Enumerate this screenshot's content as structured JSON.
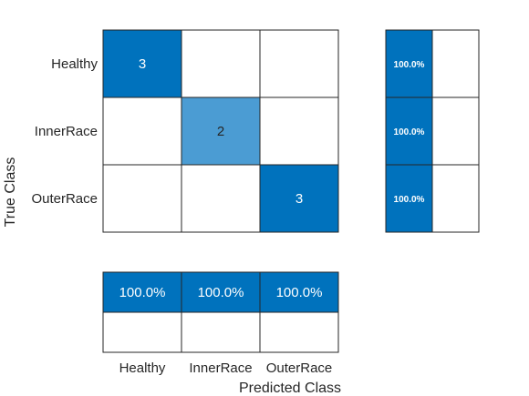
{
  "chart_data": {
    "type": "heatmap",
    "title": "",
    "xlabel": "Predicted Class",
    "ylabel": "True Class",
    "classes": [
      "Healthy",
      "InnerRace",
      "OuterRace"
    ],
    "matrix": [
      [
        3,
        null,
        null
      ],
      [
        null,
        2,
        null
      ],
      [
        null,
        null,
        3
      ]
    ],
    "row_summary": [
      "100.0%",
      "100.0%",
      "100.0%"
    ],
    "column_summary": [
      "100.0%",
      "100.0%",
      "100.0%"
    ],
    "colors": {
      "strong": "#0072bd",
      "medium": "#4b9cd3",
      "empty": "#ffffff",
      "grid": "#262626",
      "label": "#262626",
      "cell_text_light": "#ffffff",
      "cell_text_dark": "#262626"
    }
  }
}
